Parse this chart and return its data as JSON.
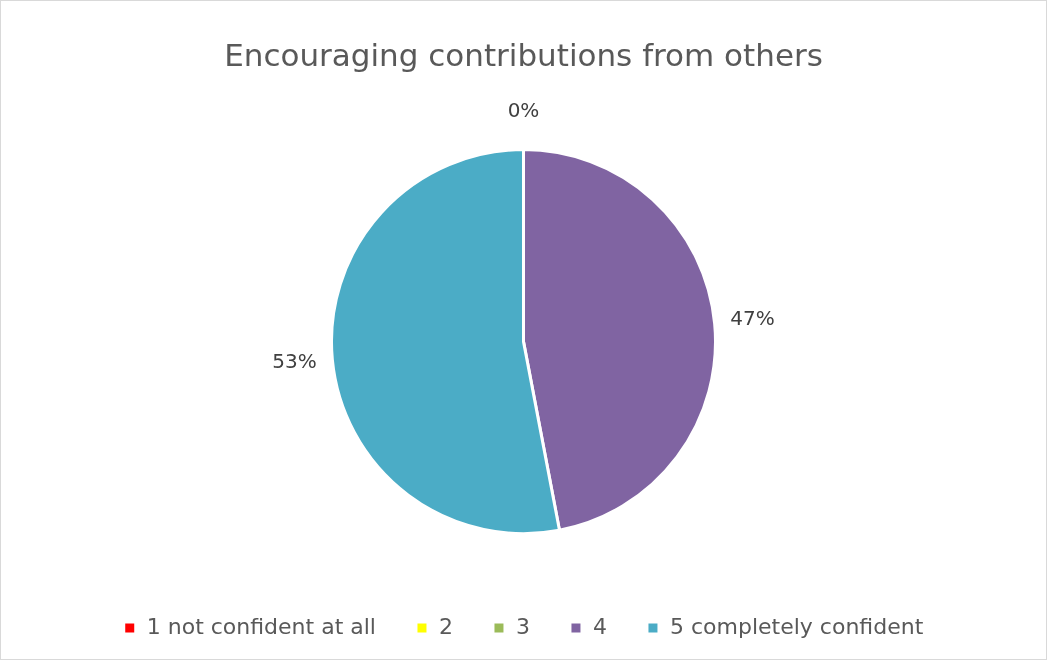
{
  "chart_data": {
    "type": "pie",
    "title": "Encouraging contributions from others",
    "categories": [
      "1 not confident at all",
      "2",
      "3",
      "4",
      "5 completely confident"
    ],
    "values": [
      0,
      0,
      0,
      47,
      53
    ],
    "colors": [
      "#ff0000",
      "#ffff00",
      "#9bbb59",
      "#8064a2",
      "#4bacc6"
    ],
    "value_labels": [
      "0%",
      null,
      null,
      "47%",
      "53%"
    ],
    "legend": "bottom"
  }
}
